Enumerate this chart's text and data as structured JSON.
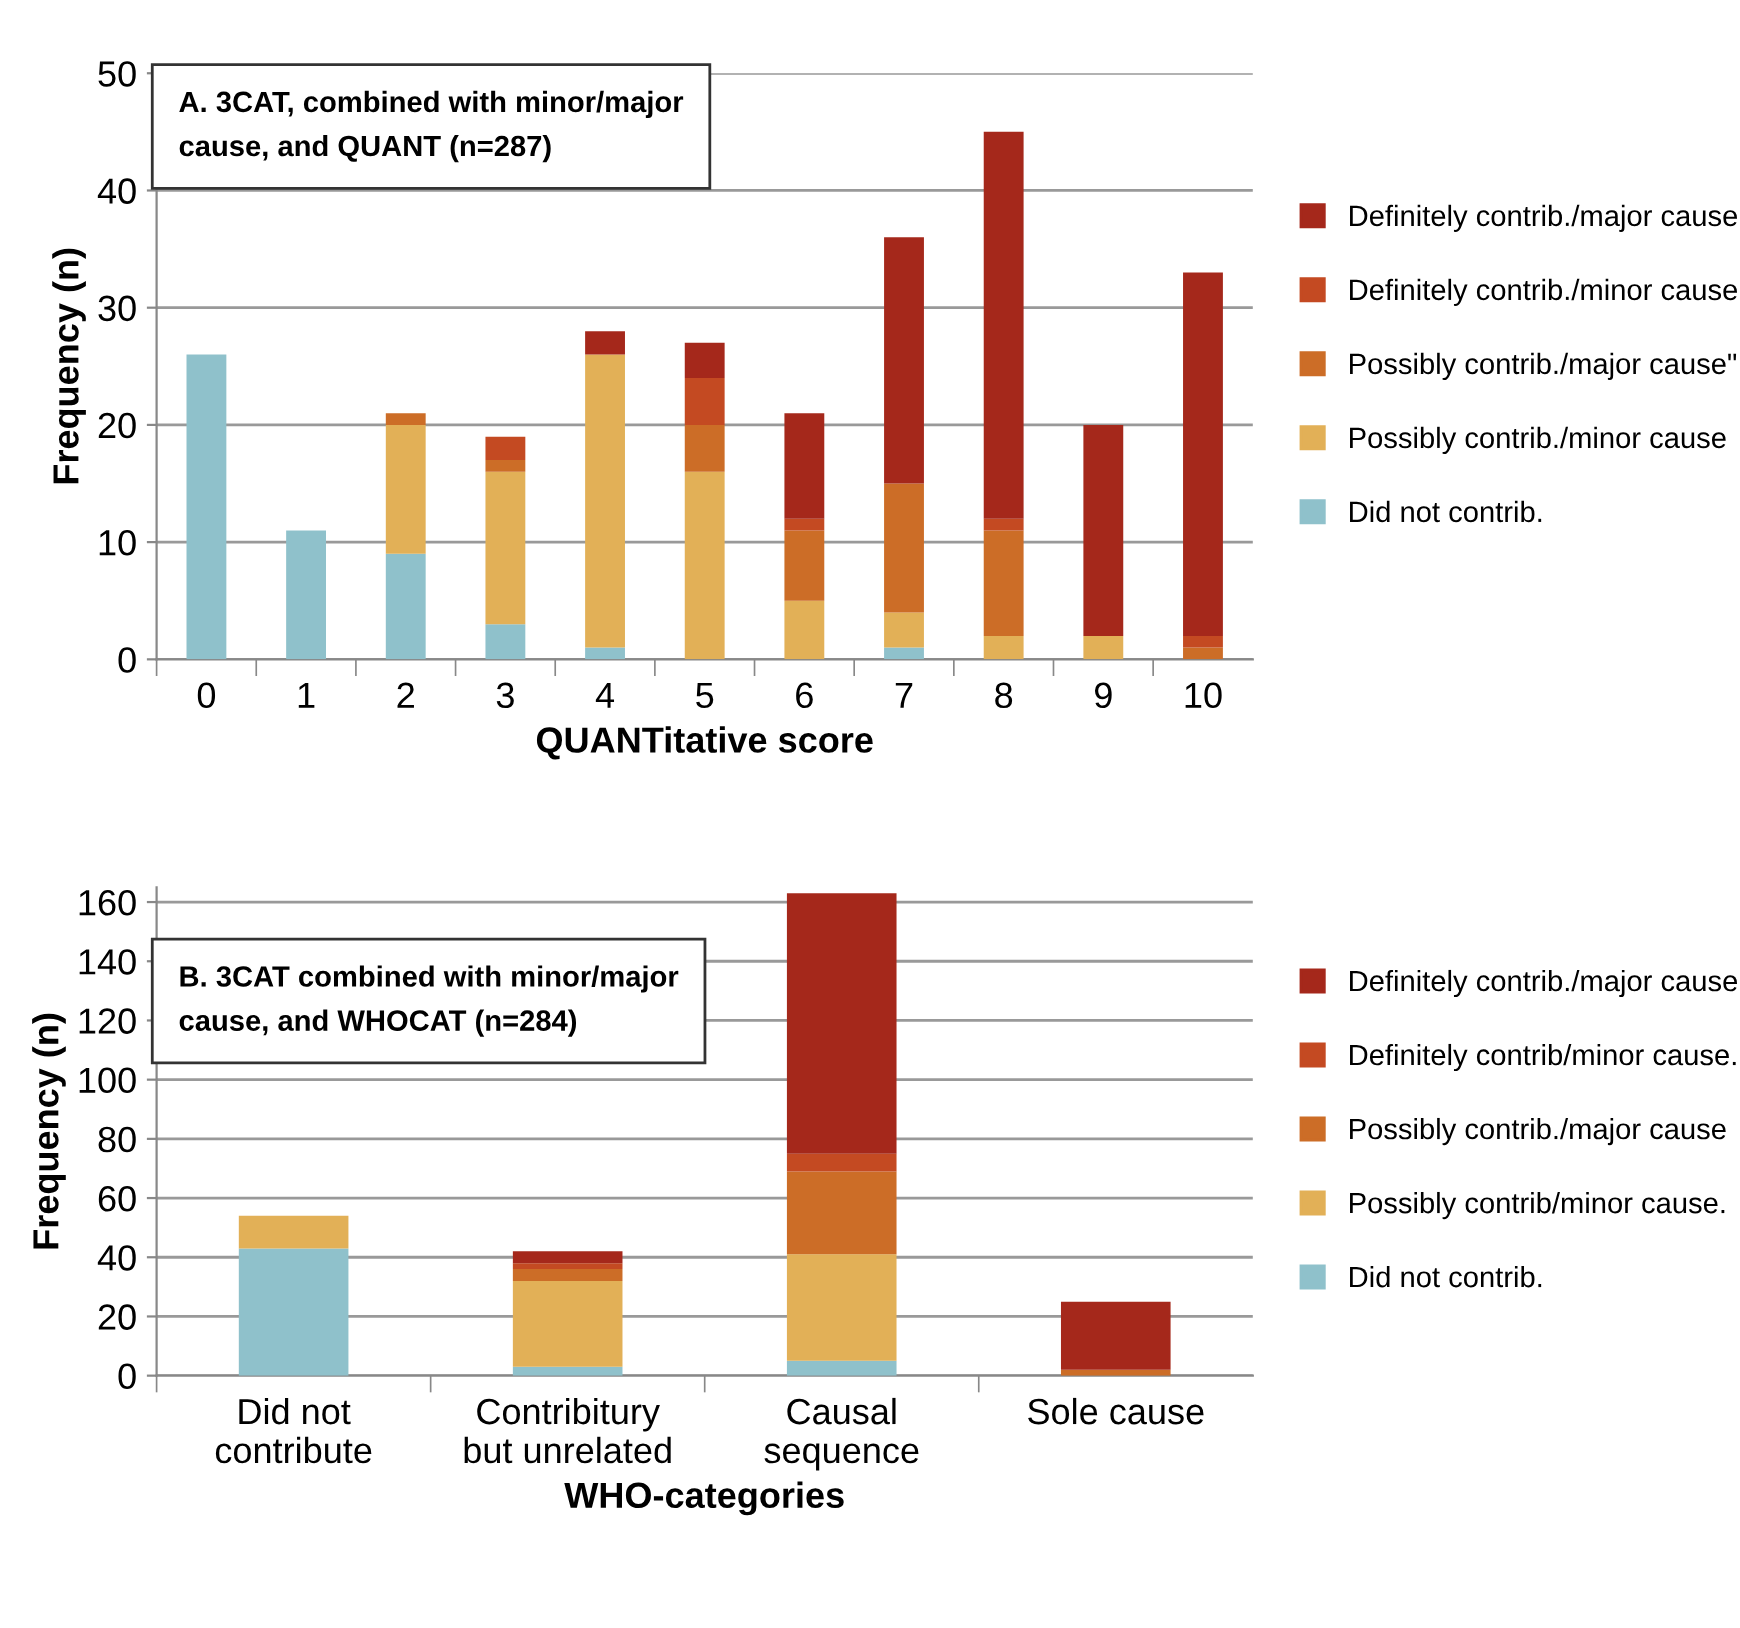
{
  "chart_data": [
    {
      "type": "bar",
      "stacked": true,
      "title": "A. 3CAT, combined with minor/major cause, and QUANT (n=287)",
      "xlabel": "QUANTitative score",
      "ylabel": "Frequency (n)",
      "categories": [
        "0",
        "1",
        "2",
        "3",
        "4",
        "5",
        "6",
        "7",
        "8",
        "9",
        "10"
      ],
      "series": [
        {
          "name": "Did not contrib.",
          "color": "#8fc1cb",
          "values": [
            26,
            11,
            9,
            3,
            1,
            0,
            0,
            1,
            0,
            0,
            0
          ]
        },
        {
          "name": "Possibly contrib./minor cause",
          "color": "#e2b057",
          "values": [
            0,
            0,
            11,
            13,
            25,
            16,
            5,
            3,
            2,
            2,
            0
          ]
        },
        {
          "name": "Possibly contrib./major cause\"",
          "color": "#cc6d27",
          "values": [
            0,
            0,
            1,
            1,
            0,
            4,
            6,
            11,
            9,
            0,
            1
          ]
        },
        {
          "name": "Definitely contrib./minor cause",
          "color": "#c44a22",
          "values": [
            0,
            0,
            0,
            2,
            0,
            4,
            1,
            0,
            1,
            0,
            1
          ]
        },
        {
          "name": "Definitely contrib./major cause",
          "color": "#a5281b",
          "values": [
            0,
            0,
            0,
            0,
            2,
            3,
            9,
            21,
            33,
            18,
            31
          ]
        }
      ],
      "ylim": [
        0,
        50
      ],
      "yticks": [
        0,
        10,
        20,
        30,
        40,
        50
      ],
      "grid": "y",
      "legend": "right"
    },
    {
      "type": "bar",
      "stacked": true,
      "title": "B. 3CAT combined with minor/major cause, and WHOCAT (n=284)",
      "xlabel": "WHO-categories",
      "ylabel": "Frequency (n)",
      "categories": [
        "Did not\ncontribute",
        "Contribitury\nbut unrelated",
        "Causal\nsequence",
        "Sole cause"
      ],
      "series": [
        {
          "name": "Did not contrib.",
          "color": "#8fc1cb",
          "values": [
            43,
            3,
            5,
            0
          ]
        },
        {
          "name": "Possibly contrib/minor cause.",
          "color": "#e2b057",
          "values": [
            11,
            29,
            36,
            0
          ]
        },
        {
          "name": "Possibly contrib./major cause",
          "color": "#cc6d27",
          "values": [
            0,
            4,
            28,
            2
          ]
        },
        {
          "name": "Definitely contrib/minor cause.",
          "color": "#c44a22",
          "values": [
            0,
            2,
            6,
            0
          ]
        },
        {
          "name": "Definitely contrib./major cause",
          "color": "#a5281b",
          "values": [
            0,
            4,
            88,
            23
          ]
        }
      ],
      "ylim": [
        0,
        165
      ],
      "yticks": [
        0,
        20,
        40,
        60,
        80,
        100,
        120,
        140,
        160
      ],
      "grid": "y",
      "legend": "right"
    }
  ]
}
